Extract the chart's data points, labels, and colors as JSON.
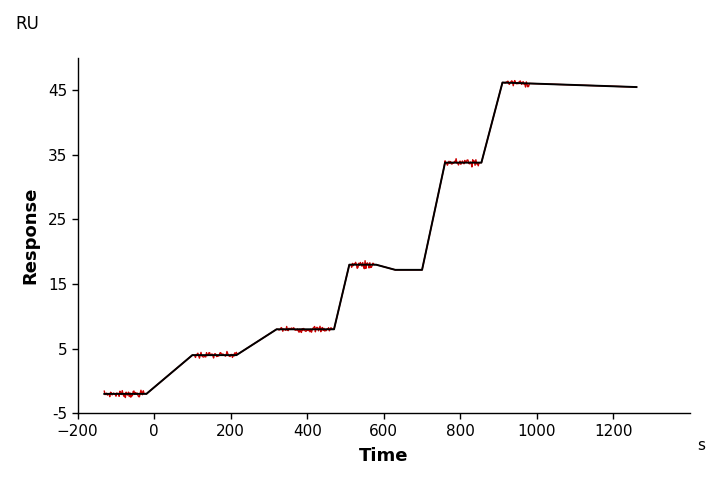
{
  "title": "",
  "xlabel": "Time",
  "ylabel": "Response",
  "ru_label": "RU",
  "s_label": "s",
  "xlim": [
    -200,
    1400
  ],
  "ylim": [
    -5,
    50
  ],
  "xticks": [
    -200,
    0,
    200,
    400,
    600,
    800,
    1000,
    1200
  ],
  "yticks": [
    -5,
    5,
    15,
    25,
    35,
    45
  ],
  "ytick_labels": [
    "-5",
    "5",
    "15",
    "25",
    "35",
    "45"
  ],
  "black_color": "#000000",
  "red_color": "#cc0000",
  "segments": [
    {
      "x_start": -130,
      "x_end": -20,
      "y_start": -2.0,
      "y_end": -2.0
    },
    {
      "x_start": -20,
      "x_end": 100,
      "y_start": -2.0,
      "y_end": 4.0
    },
    {
      "x_start": 100,
      "x_end": 215,
      "y_start": 4.0,
      "y_end": 4.0
    },
    {
      "x_start": 215,
      "x_end": 320,
      "y_start": 4.0,
      "y_end": 8.0
    },
    {
      "x_start": 320,
      "x_end": 470,
      "y_start": 8.0,
      "y_end": 8.0
    },
    {
      "x_start": 470,
      "x_end": 510,
      "y_start": 8.0,
      "y_end": 18.0
    },
    {
      "x_start": 510,
      "x_end": 580,
      "y_start": 18.0,
      "y_end": 18.0
    },
    {
      "x_start": 580,
      "x_end": 630,
      "y_start": 18.0,
      "y_end": 17.2
    },
    {
      "x_start": 630,
      "x_end": 700,
      "y_start": 17.2,
      "y_end": 17.2
    },
    {
      "x_start": 700,
      "x_end": 760,
      "y_start": 17.2,
      "y_end": 33.8
    },
    {
      "x_start": 760,
      "x_end": 855,
      "y_start": 33.8,
      "y_end": 33.8
    },
    {
      "x_start": 855,
      "x_end": 910,
      "y_start": 33.8,
      "y_end": 46.2
    },
    {
      "x_start": 910,
      "x_end": 1260,
      "y_start": 46.2,
      "y_end": 45.5
    }
  ],
  "plateau_noise": [
    {
      "xmin": -130,
      "xmax": -20,
      "y": -2.0,
      "amp": 0.25
    },
    {
      "xmin": 105,
      "xmax": 215,
      "y": 4.0,
      "amp": 0.25
    },
    {
      "xmin": 325,
      "xmax": 465,
      "y": 8.0,
      "amp": 0.25
    },
    {
      "xmin": 515,
      "xmax": 575,
      "y": 18.0,
      "amp": 0.3
    },
    {
      "xmin": 760,
      "xmax": 850,
      "y": 33.8,
      "amp": 0.35
    },
    {
      "xmin": 915,
      "xmax": 980,
      "y": 46.0,
      "amp": 0.25
    }
  ]
}
